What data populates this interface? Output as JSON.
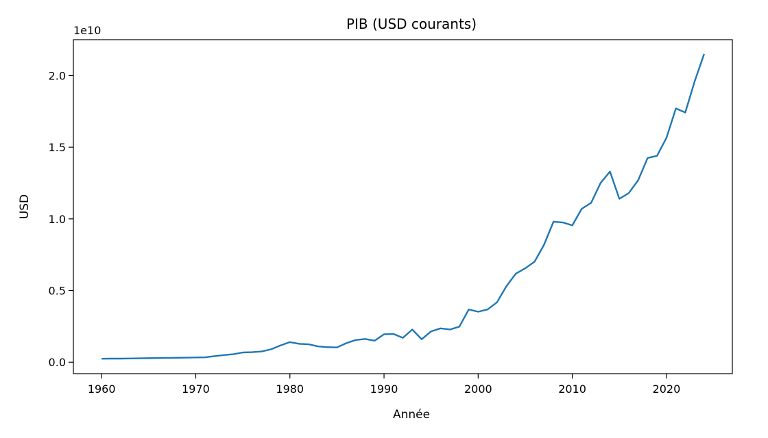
{
  "chart_data": {
    "type": "line",
    "title": "PIB (USD courants)",
    "xlabel": "Année",
    "ylabel": "USD",
    "y_offset_label": "1e10",
    "xlim": [
      1957,
      2027
    ],
    "ylim": [
      -0.08,
      2.25
    ],
    "y_scale_factor": 10000000000,
    "x_ticks": [
      1960,
      1970,
      1980,
      1990,
      2000,
      2010,
      2020
    ],
    "x_tick_labels": [
      "1960",
      "1970",
      "1980",
      "1990",
      "2000",
      "2010",
      "2020"
    ],
    "y_ticks": [
      0.0,
      0.5,
      1.0,
      1.5,
      2.0
    ],
    "y_tick_labels": [
      "0.0",
      "0.5",
      "1.0",
      "1.5",
      "2.0"
    ],
    "grid": false,
    "line_color": "#1f77b4",
    "series": [
      {
        "x": [
          1960,
          1961,
          1962,
          1963,
          1964,
          1965,
          1966,
          1967,
          1968,
          1969,
          1970,
          1971,
          1972,
          1973,
          1974,
          1975,
          1976,
          1977,
          1978,
          1979,
          1980,
          1981,
          1982,
          1983,
          1984,
          1985,
          1986,
          1987,
          1988,
          1989,
          1990,
          1991,
          1992,
          1993,
          1994,
          1995,
          1996,
          1997,
          1998,
          1999,
          2000,
          2001,
          2002,
          2003,
          2004,
          2005,
          2006,
          2007,
          2008,
          2009,
          2010,
          2011,
          2012,
          2013,
          2014,
          2015,
          2016,
          2017,
          2018,
          2019,
          2020,
          2021,
          2022,
          2023,
          2024
        ],
        "values": [
          0.024,
          0.025,
          0.025,
          0.026,
          0.027,
          0.028,
          0.029,
          0.03,
          0.031,
          0.032,
          0.033,
          0.034,
          0.042,
          0.05,
          0.056,
          0.068,
          0.07,
          0.075,
          0.09,
          0.117,
          0.14,
          0.128,
          0.125,
          0.11,
          0.105,
          0.103,
          0.133,
          0.155,
          0.162,
          0.15,
          0.195,
          0.197,
          0.17,
          0.228,
          0.16,
          0.215,
          0.236,
          0.228,
          0.248,
          0.368,
          0.352,
          0.368,
          0.418,
          0.53,
          0.618,
          0.655,
          0.702,
          0.82,
          0.98,
          0.975,
          0.955,
          1.07,
          1.112,
          1.25,
          1.33,
          1.14,
          1.18,
          1.27,
          1.425,
          1.44,
          1.565,
          1.77,
          1.742,
          1.96,
          2.15
        ]
      }
    ]
  }
}
